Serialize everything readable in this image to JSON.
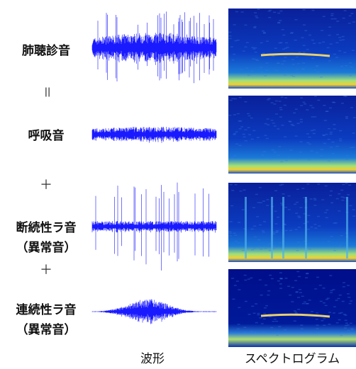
{
  "rows": [
    {
      "label": "肺聴診音"
    },
    {
      "label": "呼吸音"
    },
    {
      "label": "断続性ラ音",
      "sublabel": "（異常音）"
    },
    {
      "label": "連続性ラ音",
      "sublabel": "（異常音）"
    }
  ],
  "operators": [
    "＝",
    "＋",
    "＋"
  ],
  "columns": {
    "waveform": "波形",
    "spectrogram": "スペクトログラム"
  }
}
